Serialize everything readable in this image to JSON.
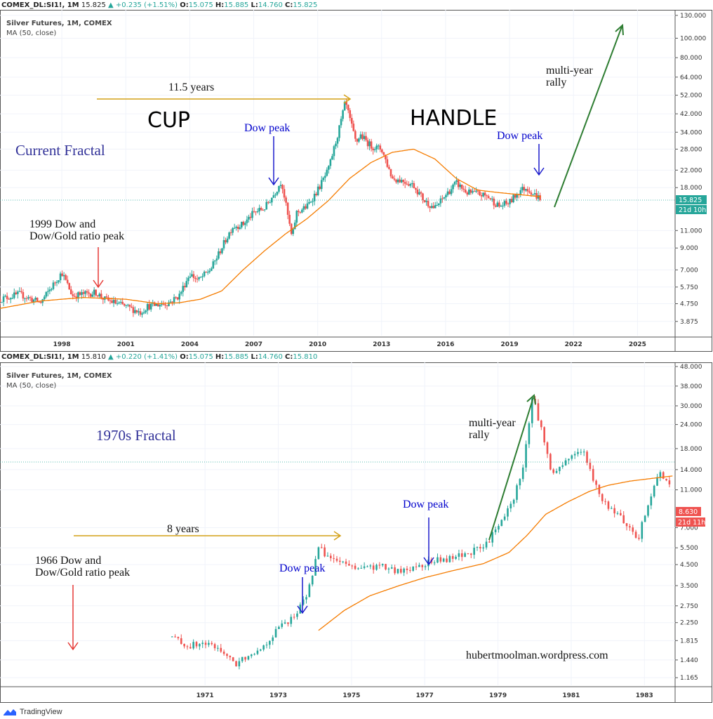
{
  "colors": {
    "up": "#26a69a",
    "down": "#ef5350",
    "ma": "#f57c00",
    "last_price_bg": "#26a69a",
    "last_price_bg2": "#ef5350",
    "annot_blue": "#0000cc",
    "annot_title": "#333399",
    "arrow_gold": "#d4a017",
    "arrow_green": "#2e7d32",
    "arrow_red": "#e53935",
    "arrow_blue": "#1a1acc"
  },
  "top": {
    "header": {
      "symbol": "COMEX_DL:SI1!, 1M",
      "last": "15.825",
      "change": "+0.235 (+1.51%)",
      "o_label": "O:",
      "o": "15.075",
      "h_label": "H:",
      "h": "15.885",
      "l_label": "L:",
      "l": "14.760",
      "c_label": "C:",
      "c": "15.825"
    },
    "legend": {
      "title": "Silver Futures, 1M, COMEX",
      "ma": "MA (50, close)"
    },
    "price_tag": "15.825",
    "time_tag": "21d 10h",
    "annotations": {
      "cup": "CUP",
      "handle": "HANDLE",
      "fractal": "Current Fractal",
      "years": "11.5 years",
      "dow_peak_1": "Dow peak",
      "dow_peak_2": "Dow peak",
      "rally_1": "multi-year",
      "rally_2": "rally",
      "peak_1": "1999 Dow and",
      "peak_2": "Dow/Gold ratio peak"
    }
  },
  "bottom": {
    "header": {
      "symbol": "COMEX_DL:SI1!, 1M",
      "last": "15.810",
      "change": "+0.220 (+1.41%)",
      "o_label": "O:",
      "o": "15.075",
      "h_label": "H:",
      "h": "15.885",
      "l_label": "L:",
      "l": "14.760",
      "c_label": "C:",
      "c": "15.810"
    },
    "legend": {
      "title": "Silver Futures, 1M, COMEX",
      "ma": "MA (50, close)"
    },
    "price_tag": "8.630",
    "time_tag": "21d 11h",
    "annotations": {
      "fractal": "1970s Fractal",
      "years": "8 years",
      "dow_peak_1": "Dow peak",
      "dow_peak_2": "Dow peak",
      "rally_1": "multi-year",
      "rally_2": "rally",
      "peak_1": "1966 Dow and",
      "peak_2": "Dow/Gold ratio peak",
      "watermark": "hubertmoolman.wordpress.com"
    }
  },
  "footer": {
    "brand": "TradingView"
  },
  "chart_data": [
    {
      "type": "candlestick",
      "title": "Silver Futures, 1M, COMEX",
      "y_scale": "log",
      "ylim": [
        3.4,
        132
      ],
      "y_ticks": [
        "130.000",
        "100.000",
        "80.000",
        "64.000",
        "52.000",
        "42.000",
        "34.000",
        "28.000",
        "22.000",
        "18.000",
        "11.000",
        "9.000",
        "7.000",
        "5.750",
        "4.750",
        "3.875"
      ],
      "x_ticks": [
        "1998",
        "2001",
        "2004",
        "2007",
        "2010",
        "2013",
        "2016",
        "2019",
        "2022",
        "2025"
      ],
      "xlim": [
        1995.1,
        2026.7
      ],
      "series": [
        {
          "name": "price",
          "x": [
            1995.1,
            1996,
            1997,
            1998,
            1998.5,
            1999,
            1999.6,
            2000,
            2001,
            2001.7,
            2002,
            2003,
            2003.5,
            2004,
            2004.4,
            2005,
            2006,
            2006.5,
            2007,
            2007.5,
            2008,
            2008.3,
            2008.8,
            2009,
            2009.5,
            2010,
            2010.5,
            2011,
            2011.3,
            2011.8,
            2012,
            2012.5,
            2013,
            2013.5,
            2014,
            2014.5,
            2015,
            2015.5,
            2016,
            2016.5,
            2017,
            2017.5,
            2018,
            2018.5,
            2019,
            2019.5,
            2019.8,
            2020.2,
            2020.5
          ],
          "y": [
            5.0,
            5.3,
            4.8,
            6.8,
            5.2,
            5.3,
            5.4,
            5.0,
            4.6,
            4.3,
            4.6,
            4.8,
            5.2,
            6.7,
            6.2,
            7.1,
            11.5,
            11.8,
            13.5,
            14.2,
            17.0,
            19.5,
            10.0,
            13.5,
            14.5,
            17.5,
            22,
            35,
            48,
            30,
            33,
            29,
            28,
            20,
            19.5,
            18.5,
            15.5,
            14.2,
            16.5,
            19.0,
            17.0,
            16.8,
            16.2,
            14.5,
            15.2,
            17.5,
            18.0,
            16.5,
            15.8
          ]
        },
        {
          "name": "MA (50, close)",
          "x": [
            1995.1,
            1997,
            1999,
            2001,
            2002.5,
            2003.5,
            2004.5,
            2005.5,
            2006.5,
            2007.5,
            2008.5,
            2009.5,
            2010.5,
            2011.5,
            2012.5,
            2013.5,
            2014.5,
            2015.5,
            2016.5,
            2017.5,
            2018.5,
            2019.5,
            2020.5
          ],
          "y": [
            4.5,
            4.9,
            5.1,
            5.0,
            4.75,
            4.8,
            5.0,
            5.5,
            7.0,
            8.7,
            10.6,
            12.6,
            15.5,
            20.0,
            24.0,
            27.0,
            28.0,
            25.0,
            20.0,
            17.5,
            17.0,
            16.6,
            16.2
          ]
        }
      ],
      "annotations": [
        "CUP",
        "HANDLE",
        "Current Fractal",
        "11.5 years",
        "Dow peak",
        "Dow peak",
        "multi-year rally",
        "1999 Dow and Dow/Gold ratio peak"
      ]
    },
    {
      "type": "candlestick",
      "title": "Silver Futures, 1M, COMEX",
      "y_scale": "log",
      "ylim": [
        1.1,
        48
      ],
      "y_ticks": [
        "48.000",
        "38.000",
        "30.000",
        "24.000",
        "18.000",
        "14.000",
        "11.000",
        "7.000",
        "5.500",
        "4.500",
        "3.500",
        "2.750",
        "2.250",
        "1.815",
        "1.440",
        "1.165"
      ],
      "x_ticks": [
        "1971",
        "1973",
        "1975",
        "1977",
        "1979",
        "1981",
        "1983"
      ],
      "xlim": [
        1965.4,
        1983.8
      ],
      "series": [
        {
          "name": "price",
          "x": [
            1970.1,
            1970.5,
            1971,
            1971.5,
            1971.8,
            1972.2,
            1972.6,
            1973,
            1973.5,
            1973.8,
            1974.1,
            1974.4,
            1974.8,
            1975.3,
            1975.8,
            1976.3,
            1976.7,
            1977.2,
            1977.7,
            1978.2,
            1978.6,
            1979,
            1979.4,
            1979.7,
            1979.95,
            1980.2,
            1980.5,
            1980.9,
            1981.3,
            1981.7,
            1982.1,
            1982.5,
            1982.8,
            1983.1,
            1983.4,
            1983.7
          ],
          "y": [
            1.9,
            1.7,
            1.75,
            1.6,
            1.35,
            1.55,
            1.7,
            2.1,
            2.5,
            3.2,
            5.5,
            4.9,
            4.5,
            4.3,
            4.4,
            4.1,
            4.4,
            4.7,
            4.8,
            5.2,
            5.5,
            7.0,
            9.5,
            15,
            34,
            22,
            13,
            16,
            18,
            11,
            8.5,
            7.5,
            5.8,
            9.5,
            13.5,
            12
          ]
        },
        {
          "name": "MA (50, close)",
          "x": [
            1974.1,
            1974.8,
            1975.5,
            1976.3,
            1977,
            1977.8,
            1978.6,
            1979.3,
            1979.8,
            1980.3,
            1980.9,
            1981.5,
            1982,
            1982.6,
            1983.2,
            1983.8
          ],
          "y": [
            2.05,
            2.6,
            3.1,
            3.5,
            3.85,
            4.2,
            4.55,
            5.2,
            6.4,
            8.2,
            9.5,
            10.8,
            11.6,
            12.2,
            12.6,
            13.0
          ]
        }
      ],
      "annotations": [
        "1970s Fractal",
        "8 years",
        "Dow peak",
        "Dow peak",
        "multi-year rally",
        "1966 Dow and Dow/Gold ratio peak",
        "hubertmoolman.wordpress.com"
      ]
    }
  ]
}
